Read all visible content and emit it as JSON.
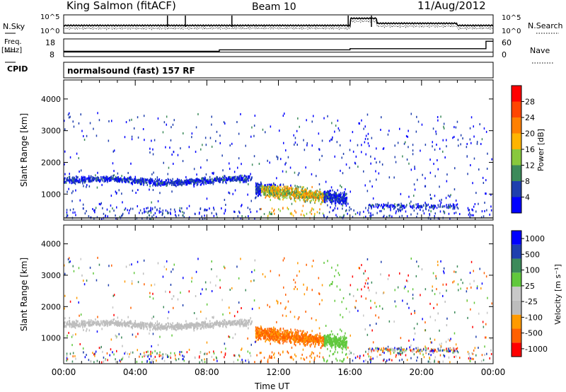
{
  "header": {
    "station": "King Salmon (fitACF)",
    "beam": "Beam 10",
    "date": "11/Aug/2012"
  },
  "noise_panel": {
    "left_label": "N.Sky",
    "right_label": "N.Search",
    "left_ticks": [
      "10^5",
      "10^0"
    ],
    "right_ticks": [
      "10^5",
      "10^0"
    ]
  },
  "freq_panel": {
    "left_label_1": "Freq.",
    "left_label_2": "[MHz]",
    "left_ticks": [
      "18",
      "8"
    ],
    "right_label": "Nave",
    "right_ticks": [
      "60",
      "0"
    ],
    "freq_mhz": 10.5,
    "nave_steps": [
      [
        0,
        18
      ],
      [
        8.7,
        23
      ],
      [
        16.0,
        27
      ],
      [
        23.6,
        52
      ]
    ]
  },
  "cpid": {
    "label": "CPID",
    "program": "normalsound (fast) 157 RF"
  },
  "colors": {
    "power_scale": [
      "#0000ff",
      "#1f3fae",
      "#3c8a5a",
      "#88c83c",
      "#ffb400",
      "#ff8000",
      "#ff4500",
      "#ff0000"
    ],
    "velocity_scale": [
      "#ff0000",
      "#ff6000",
      "#ff9a00",
      "#bdbdbd",
      "#c8c8c8",
      "#61c83c",
      "#3c8a5a",
      "#1f3fae",
      "#0000ff"
    ],
    "ground_scatter": "#8c8c8c"
  },
  "chart_data": [
    {
      "type": "heatmap",
      "name": "power",
      "xlabel": "",
      "ylabel": "Slant Range [km]",
      "xlim": [
        0,
        24
      ],
      "ylim": [
        180,
        4600
      ],
      "y_ticks": [
        "1000",
        "2000",
        "3000",
        "4000"
      ],
      "colorbar": {
        "label": "Power [dB]",
        "range": [
          0,
          30
        ],
        "tick_labels": [
          "4",
          "8",
          "12",
          "16",
          "20",
          "24",
          "28"
        ]
      },
      "features": [
        {
          "t_start": 0.0,
          "t_end": 10.5,
          "range_km": 1450,
          "note": "mid-range scatter band, 4-12 dB"
        },
        {
          "t_start": 10.7,
          "t_end": 15.8,
          "range_km": 1100,
          "note": "enhanced scatter 12-24 dB"
        },
        {
          "t_start": 16.0,
          "t_end": 24.0,
          "range_km": 3300,
          "note": "sparse far-range echoes"
        }
      ]
    },
    {
      "type": "heatmap",
      "name": "velocity",
      "xlabel": "Time UT",
      "ylabel": "Slant Range [km]",
      "xlim": [
        0,
        24
      ],
      "ylim": [
        180,
        4600
      ],
      "x_ticks": [
        "00:00",
        "04:00",
        "08:00",
        "12:00",
        "16:00",
        "20:00",
        "00:00"
      ],
      "y_ticks": [
        "1000",
        "2000",
        "3000",
        "4000"
      ],
      "colorbar": {
        "label": "Velocity [m s^-1]",
        "range": [
          -1200,
          1200
        ],
        "tick_labels": [
          "1000",
          "500",
          "100",
          "25",
          "-25",
          "-100",
          "-500",
          "-1000"
        ]
      },
      "features": [
        {
          "t_start": 0.0,
          "t_end": 10.5,
          "range_km": 1450,
          "note": "near-zero velocity (ground scatter)"
        },
        {
          "t_start": 10.7,
          "t_end": 14.5,
          "range_km": 1100,
          "note": "-100 to -500 m/s"
        },
        {
          "t_start": 14.5,
          "t_end": 15.8,
          "range_km": 900,
          "note": "positive ~100 m/s"
        }
      ]
    }
  ]
}
